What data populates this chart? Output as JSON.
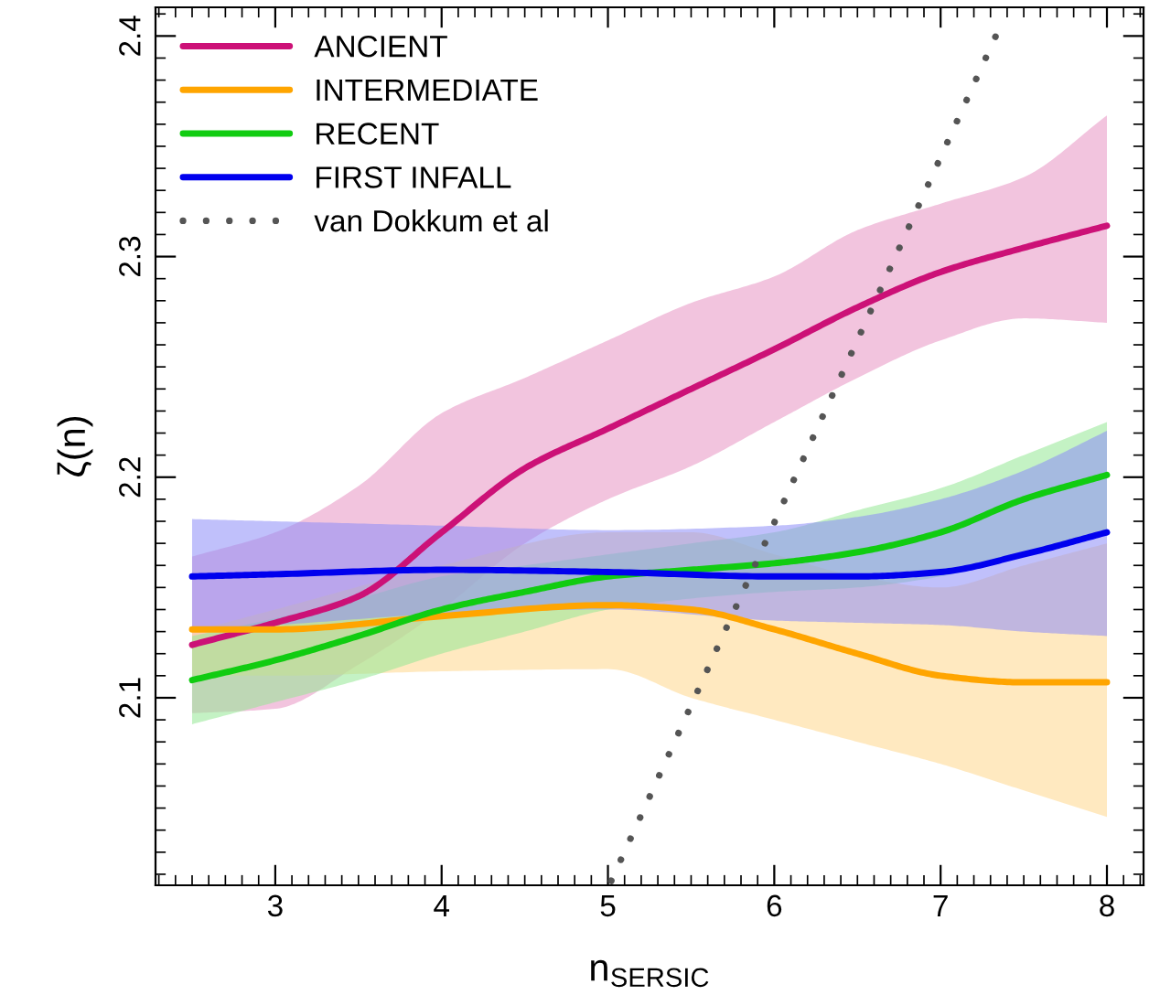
{
  "chart_data": {
    "type": "line",
    "xlabel": "n$_{SERSIC}$",
    "ylabel": "ζ(n)",
    "xlim": [
      2.28,
      8.22
    ],
    "ylim": [
      2.015,
      2.413
    ],
    "xticks": [
      3,
      4,
      5,
      6,
      7,
      8
    ],
    "yticks": [
      2.1,
      2.2,
      2.3,
      2.4
    ],
    "grid": false,
    "legend": "top left",
    "line_style": "solid",
    "series": [
      {
        "name": "ANCIENT",
        "color": "#cc1177",
        "x": [
          2.5,
          3,
          3.5,
          4,
          4.5,
          5,
          5.5,
          6,
          6.5,
          7,
          7.5,
          8
        ],
        "values": [
          2.124,
          2.134,
          2.146,
          2.175,
          2.204,
          2.222,
          2.24,
          2.258,
          2.277,
          2.293,
          2.304,
          2.314
        ],
        "upper": [
          2.164,
          2.175,
          2.196,
          2.229,
          2.245,
          2.262,
          2.279,
          2.291,
          2.312,
          2.324,
          2.336,
          2.364
        ],
        "lower": [
          2.093,
          2.095,
          2.115,
          2.14,
          2.17,
          2.19,
          2.205,
          2.225,
          2.245,
          2.262,
          2.272,
          2.27
        ]
      },
      {
        "name": "INTERMEDIATE",
        "color": "#ffa500",
        "x": [
          2.5,
          3,
          4,
          5,
          5.5,
          6,
          6.5,
          7,
          7.5,
          8
        ],
        "values": [
          2.131,
          2.131,
          2.137,
          2.142,
          2.14,
          2.131,
          2.12,
          2.11,
          2.107,
          2.107
        ],
        "upper": [
          2.13,
          2.14,
          2.16,
          2.175,
          2.175,
          2.165,
          2.155,
          2.15,
          2.16,
          2.17
        ],
        "lower": [
          2.11,
          2.11,
          2.112,
          2.113,
          2.1,
          2.09,
          2.08,
          2.07,
          2.058,
          2.046
        ]
      },
      {
        "name": "RECENT",
        "color": "#11cc11",
        "x": [
          2.5,
          3,
          3.5,
          4,
          4.5,
          5,
          5.5,
          6,
          6.5,
          7,
          7.5,
          8
        ],
        "values": [
          2.108,
          2.117,
          2.128,
          2.14,
          2.148,
          2.155,
          2.158,
          2.161,
          2.166,
          2.175,
          2.19,
          2.201
        ],
        "upper": [
          2.128,
          2.136,
          2.145,
          2.155,
          2.16,
          2.165,
          2.17,
          2.175,
          2.185,
          2.195,
          2.21,
          2.225
        ],
        "lower": [
          2.088,
          2.098,
          2.108,
          2.12,
          2.13,
          2.14,
          2.145,
          2.148,
          2.15,
          2.155,
          2.165,
          2.175
        ]
      },
      {
        "name": "FIRST INFALL",
        "color": "#0000ee",
        "x": [
          2.5,
          3,
          4,
          5,
          6,
          6.5,
          7,
          7.5,
          8
        ],
        "values": [
          2.155,
          2.156,
          2.158,
          2.157,
          2.155,
          2.155,
          2.157,
          2.165,
          2.175
        ],
        "upper": [
          2.181,
          2.18,
          2.178,
          2.176,
          2.178,
          2.182,
          2.19,
          2.203,
          2.221
        ],
        "lower": [
          2.131,
          2.133,
          2.138,
          2.14,
          2.135,
          2.134,
          2.133,
          2.13,
          2.128
        ]
      },
      {
        "name": "van Dokkum et al",
        "color": "#555555",
        "line_style": "dotted",
        "x": [
          5.02,
          7.38
        ],
        "values": [
          2.017,
          2.408
        ]
      }
    ]
  }
}
